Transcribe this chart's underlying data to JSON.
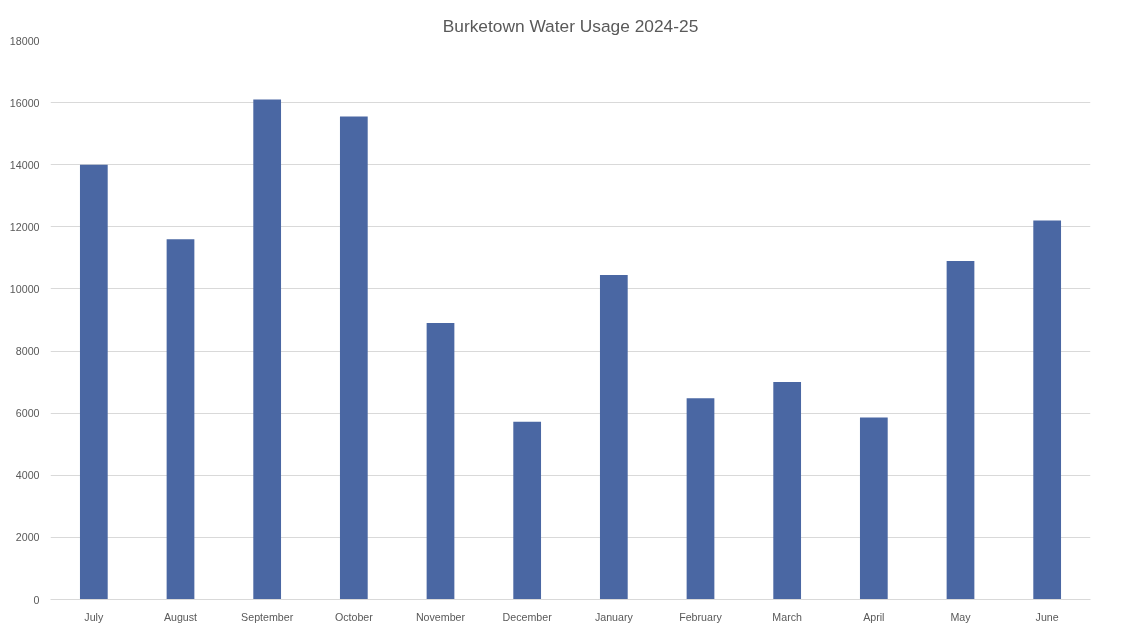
{
  "chart_data": {
    "type": "bar",
    "title": "Burketown Water Usage 2024-25",
    "categories": [
      "July",
      "August",
      "September",
      "October",
      "November",
      "December",
      "January",
      "February",
      "March",
      "April",
      "May",
      "June"
    ],
    "values": [
      14000,
      11600,
      16100,
      15550,
      8900,
      5720,
      10450,
      6480,
      7000,
      5860,
      10900,
      12200
    ],
    "color": "#4a67a3",
    "ylim": [
      0,
      18000
    ],
    "yticks": [
      0,
      2000,
      4000,
      6000,
      8000,
      10000,
      12000,
      14000,
      16000,
      18000
    ],
    "grid": "y"
  }
}
